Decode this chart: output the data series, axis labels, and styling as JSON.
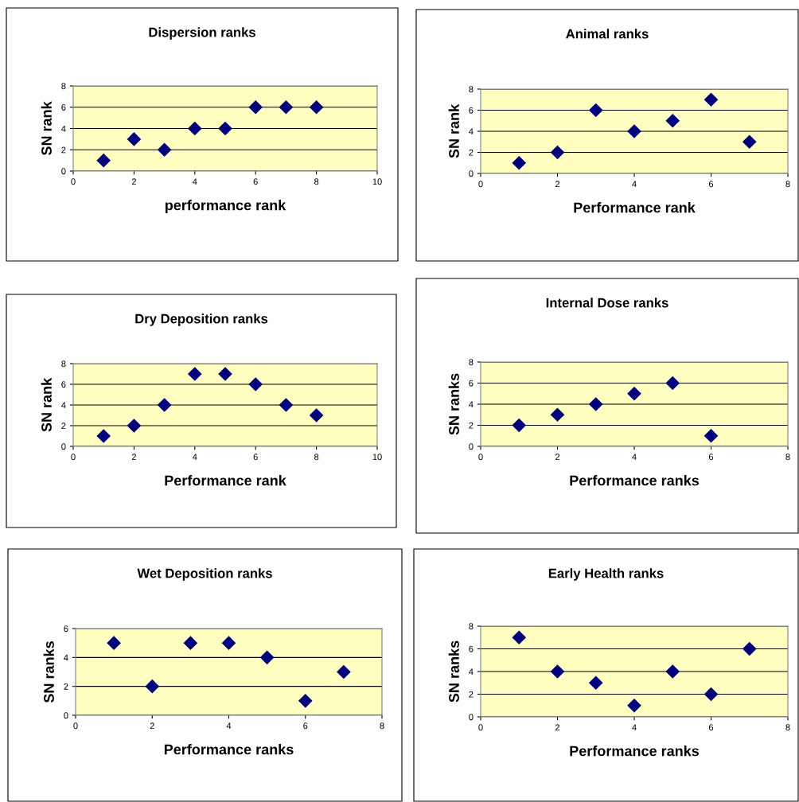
{
  "chart_data": [
    {
      "type": "scatter",
      "title": "Dispersion ranks",
      "xlabel": "performance rank",
      "ylabel": "SN rank",
      "x": [
        1,
        2,
        3,
        4,
        5,
        6,
        7,
        8
      ],
      "series": [
        {
          "color": "#000080",
          "values": [
            1,
            3,
            2,
            4,
            4,
            6,
            6,
            6
          ]
        }
      ],
      "xlim": [
        0,
        10
      ],
      "xticks": [
        0,
        2,
        4,
        6,
        8,
        10
      ],
      "ylim": [
        0,
        8
      ],
      "yticks": [
        0,
        2,
        4,
        6,
        8
      ],
      "grid": "y",
      "marker": "diamond"
    },
    {
      "type": "scatter",
      "title": "Animal ranks",
      "xlabel": "Performance rank",
      "ylabel": "SN rank",
      "x": [
        1,
        2,
        3,
        4,
        5,
        6,
        7
      ],
      "series": [
        {
          "color": "#000080",
          "values": [
            1,
            2,
            6,
            4,
            5,
            7,
            3
          ]
        }
      ],
      "xlim": [
        0,
        8
      ],
      "xticks": [
        0,
        2,
        4,
        6,
        8
      ],
      "ylim": [
        0,
        8
      ],
      "yticks": [
        0,
        2,
        4,
        6,
        8
      ],
      "grid": "y",
      "marker": "diamond"
    },
    {
      "type": "scatter",
      "title": "Dry Deposition ranks",
      "xlabel": "Performance rank",
      "ylabel": "SN rank",
      "x": [
        1,
        2,
        3,
        4,
        5,
        6,
        7,
        8
      ],
      "series": [
        {
          "color": "#000080",
          "values": [
            1,
            2,
            4,
            7,
            7,
            6,
            4,
            3
          ]
        }
      ],
      "xlim": [
        0,
        10
      ],
      "xticks": [
        0,
        2,
        4,
        6,
        8,
        10
      ],
      "ylim": [
        0,
        8
      ],
      "yticks": [
        0,
        2,
        4,
        6,
        8
      ],
      "grid": "y",
      "marker": "diamond"
    },
    {
      "type": "scatter",
      "title": "Internal Dose ranks",
      "xlabel": "Performance ranks",
      "ylabel": "SN ranks",
      "x": [
        1,
        2,
        3,
        4,
        5,
        6
      ],
      "series": [
        {
          "color": "#000080",
          "values": [
            2,
            3,
            4,
            5,
            6,
            1
          ]
        }
      ],
      "xlim": [
        0,
        8
      ],
      "xticks": [
        0,
        2,
        4,
        6,
        8
      ],
      "ylim": [
        0,
        8
      ],
      "yticks": [
        0,
        2,
        4,
        6,
        8
      ],
      "grid": "y",
      "marker": "diamond"
    },
    {
      "type": "scatter",
      "title": "Wet Deposition ranks",
      "xlabel": "Performance ranks",
      "ylabel": "SN ranks",
      "x": [
        1,
        2,
        3,
        4,
        5,
        6,
        7
      ],
      "series": [
        {
          "color": "#000080",
          "values": [
            5,
            2,
            5,
            5,
            4,
            1,
            3
          ]
        }
      ],
      "xlim": [
        0,
        8
      ],
      "xticks": [
        0,
        2,
        4,
        6,
        8
      ],
      "ylim": [
        0,
        6
      ],
      "yticks": [
        0,
        2,
        4,
        6
      ],
      "grid": "y",
      "marker": "diamond"
    },
    {
      "type": "scatter",
      "title": "Early Health ranks",
      "xlabel": "Performance ranks",
      "ylabel": "SN ranks",
      "x": [
        1,
        2,
        3,
        4,
        5,
        6,
        7
      ],
      "series": [
        {
          "color": "#000080",
          "values": [
            7,
            4,
            3,
            1,
            4,
            2,
            6
          ]
        }
      ],
      "xlim": [
        0,
        8
      ],
      "xticks": [
        0,
        2,
        4,
        6,
        8
      ],
      "ylim": [
        0,
        8
      ],
      "yticks": [
        0,
        2,
        4,
        6,
        8
      ],
      "grid": "y",
      "marker": "diamond"
    }
  ]
}
